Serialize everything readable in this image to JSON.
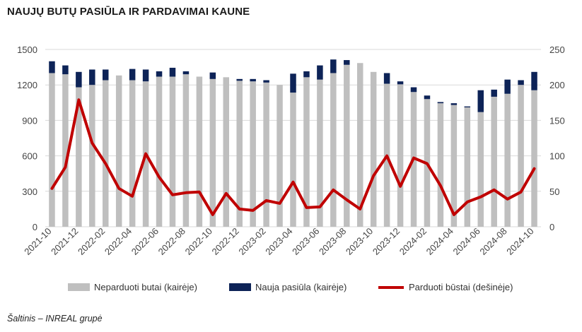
{
  "title": "NAUJŲ BUTŲ PASIŪLA IR PARDAVIMAI KAUNE",
  "source": "Šaltinis – INREAL grupė",
  "chart_data": {
    "type": "bar",
    "subtype": "stacked bar + line, dual axis",
    "categories": [
      "2021-10",
      "2021-11",
      "2021-12",
      "2022-01",
      "2022-02",
      "2022-03",
      "2022-04",
      "2022-05",
      "2022-06",
      "2022-07",
      "2022-08",
      "2022-09",
      "2022-10",
      "2022-11",
      "2022-12",
      "2023-01",
      "2023-02",
      "2023-03",
      "2023-04",
      "2023-05",
      "2023-06",
      "2023-07",
      "2023-08",
      "2023-09",
      "2023-10",
      "2023-11",
      "2023-12",
      "2024-01",
      "2024-02",
      "2024-03",
      "2024-04",
      "2024-05",
      "2024-06",
      "2024-07",
      "2024-08",
      "2024-09",
      "2024-10"
    ],
    "x_tick_labels": [
      "2021-10",
      "2021-12",
      "2022-02",
      "2022-04",
      "2022-06",
      "2022-08",
      "2022-10",
      "2022-12",
      "2023-02",
      "2023-04",
      "2023-06",
      "2023-08",
      "2023-10",
      "2023-12",
      "2024-02",
      "2024-04",
      "2024-06",
      "2024-08",
      "2024-10"
    ],
    "series": [
      {
        "name": "Neparduoti butai (kairėje)",
        "axis": "left",
        "kind": "bar",
        "color": "#bfbfbf",
        "values": [
          1300,
          1290,
          1180,
          1200,
          1240,
          1280,
          1240,
          1230,
          1270,
          1270,
          1290,
          1270,
          1250,
          1265,
          1235,
          1230,
          1220,
          1200,
          1135,
          1265,
          1245,
          1300,
          1370,
          1385,
          1310,
          1210,
          1205,
          1140,
          1080,
          1045,
          1030,
          1010,
          970,
          1100,
          1125,
          1200,
          1155
        ]
      },
      {
        "name": "Nauja pasiūla (kairėje)",
        "axis": "left",
        "kind": "bar",
        "color": "#0d2357",
        "values": [
          100,
          75,
          130,
          130,
          90,
          0,
          95,
          100,
          45,
          75,
          25,
          0,
          55,
          0,
          15,
          20,
          20,
          0,
          160,
          50,
          120,
          115,
          40,
          0,
          0,
          90,
          25,
          40,
          30,
          10,
          15,
          8,
          185,
          60,
          120,
          40,
          155
        ]
      },
      {
        "name": "Parduoti būstai (dešinėje)",
        "axis": "right",
        "kind": "line",
        "color": "#c00000",
        "values": [
          54,
          84,
          179,
          118,
          89,
          54,
          43,
          103,
          70,
          45,
          48,
          49,
          17,
          47,
          25,
          23,
          37,
          33,
          63,
          27,
          28,
          52,
          38,
          25,
          72,
          100,
          57,
          97,
          89,
          58,
          17,
          35,
          42,
          52,
          39,
          49,
          82
        ]
      }
    ],
    "y_left": {
      "min": 0,
      "max": 1500,
      "ticks": [
        0,
        300,
        600,
        900,
        1200,
        1500
      ]
    },
    "y_right": {
      "min": 0,
      "max": 250,
      "ticks": [
        0,
        50,
        100,
        150,
        200,
        250
      ]
    },
    "legend_position": "bottom",
    "grid": true
  }
}
